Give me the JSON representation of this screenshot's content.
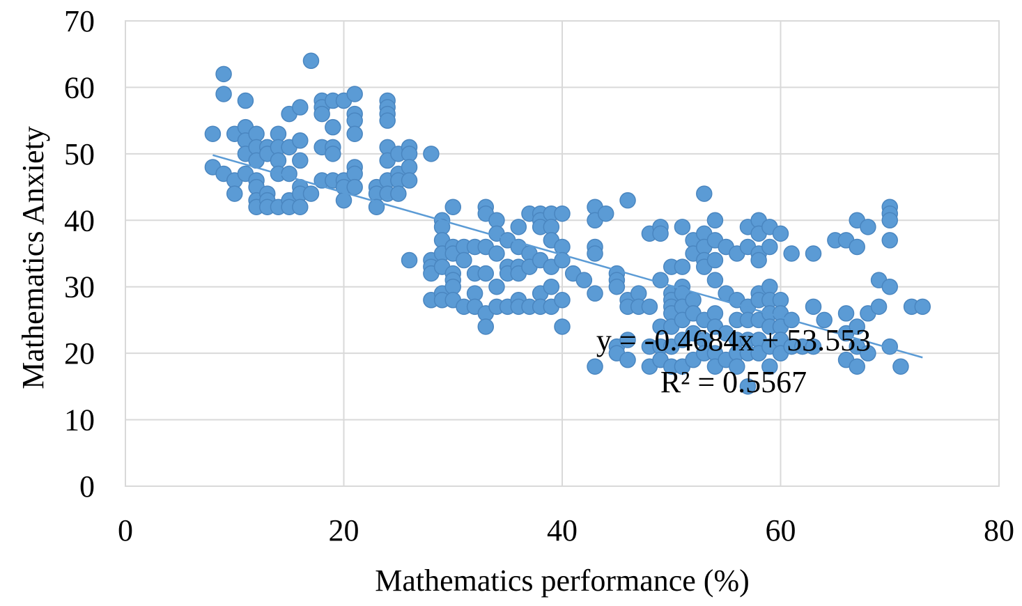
{
  "chart_data": {
    "type": "scatter",
    "title": "",
    "xlabel": "Mathematics performance (%)",
    "ylabel": "Mathematics Anxiety",
    "xlim": [
      0,
      80
    ],
    "ylim": [
      0,
      70
    ],
    "xticks": [
      0,
      20,
      40,
      60,
      80
    ],
    "yticks": [
      0,
      10,
      20,
      30,
      40,
      50,
      60,
      70
    ],
    "grid": true,
    "legend": "none",
    "colors": {
      "point": "#5b9bd5",
      "point_edge": "#4a86c0",
      "trendline": "#5b9bd5",
      "grid": "#d9d9d9"
    },
    "trendline": {
      "slope": -0.4684,
      "intercept": 53.553,
      "x_range": [
        8,
        73
      ],
      "equation_label": "y = -0.4684x + 53.553",
      "r2_label": "R² = 0.5567"
    },
    "points": [
      [
        8,
        53
      ],
      [
        8,
        48
      ],
      [
        9,
        62
      ],
      [
        9,
        59
      ],
      [
        9,
        47
      ],
      [
        10,
        53
      ],
      [
        10,
        46
      ],
      [
        10,
        44
      ],
      [
        11,
        58
      ],
      [
        11,
        54
      ],
      [
        11,
        52
      ],
      [
        11,
        50
      ],
      [
        11,
        47
      ],
      [
        12,
        53
      ],
      [
        12,
        51
      ],
      [
        12,
        49
      ],
      [
        12,
        46
      ],
      [
        12,
        45
      ],
      [
        12,
        43
      ],
      [
        12,
        42
      ],
      [
        13,
        51
      ],
      [
        13,
        50
      ],
      [
        13,
        44
      ],
      [
        13,
        43
      ],
      [
        13,
        42
      ],
      [
        14,
        53
      ],
      [
        14,
        51
      ],
      [
        14,
        49
      ],
      [
        14,
        47
      ],
      [
        14,
        42
      ],
      [
        15,
        56
      ],
      [
        15,
        51
      ],
      [
        15,
        47
      ],
      [
        15,
        43
      ],
      [
        15,
        42
      ],
      [
        16,
        57
      ],
      [
        16,
        52
      ],
      [
        16,
        49
      ],
      [
        16,
        45
      ],
      [
        16,
        44
      ],
      [
        16,
        42
      ],
      [
        17,
        64
      ],
      [
        17,
        44
      ],
      [
        18,
        58
      ],
      [
        18,
        57
      ],
      [
        18,
        56
      ],
      [
        18,
        51
      ],
      [
        18,
        46
      ],
      [
        19,
        58
      ],
      [
        19,
        54
      ],
      [
        19,
        51
      ],
      [
        19,
        50
      ],
      [
        19,
        46
      ],
      [
        20,
        58
      ],
      [
        20,
        46
      ],
      [
        20,
        45
      ],
      [
        20,
        43
      ],
      [
        21,
        59
      ],
      [
        21,
        56
      ],
      [
        21,
        55
      ],
      [
        21,
        53
      ],
      [
        21,
        48
      ],
      [
        21,
        47
      ],
      [
        21,
        45
      ],
      [
        23,
        45
      ],
      [
        23,
        44
      ],
      [
        23,
        42
      ],
      [
        24,
        58
      ],
      [
        24,
        57
      ],
      [
        24,
        56
      ],
      [
        24,
        55
      ],
      [
        24,
        51
      ],
      [
        24,
        49
      ],
      [
        24,
        46
      ],
      [
        24,
        44
      ],
      [
        25,
        50
      ],
      [
        25,
        47
      ],
      [
        25,
        46
      ],
      [
        25,
        44
      ],
      [
        26,
        51
      ],
      [
        26,
        50
      ],
      [
        26,
        48
      ],
      [
        26,
        46
      ],
      [
        26,
        34
      ],
      [
        28,
        50
      ],
      [
        28,
        34
      ],
      [
        28,
        33
      ],
      [
        28,
        32
      ],
      [
        28,
        28
      ],
      [
        29,
        40
      ],
      [
        29,
        39
      ],
      [
        29,
        37
      ],
      [
        29,
        35
      ],
      [
        29,
        33
      ],
      [
        29,
        29
      ],
      [
        29,
        28
      ],
      [
        30,
        42
      ],
      [
        30,
        36
      ],
      [
        30,
        35
      ],
      [
        30,
        32
      ],
      [
        30,
        31
      ],
      [
        30,
        30
      ],
      [
        30,
        28
      ],
      [
        31,
        36
      ],
      [
        31,
        34
      ],
      [
        31,
        27
      ],
      [
        32,
        36
      ],
      [
        32,
        32
      ],
      [
        32,
        29
      ],
      [
        32,
        27
      ],
      [
        33,
        42
      ],
      [
        33,
        41
      ],
      [
        33,
        36
      ],
      [
        33,
        32
      ],
      [
        33,
        26
      ],
      [
        33,
        24
      ],
      [
        34,
        40
      ],
      [
        34,
        38
      ],
      [
        34,
        35
      ],
      [
        34,
        30
      ],
      [
        34,
        27
      ],
      [
        35,
        37
      ],
      [
        35,
        33
      ],
      [
        35,
        32
      ],
      [
        35,
        27
      ],
      [
        36,
        39
      ],
      [
        36,
        36
      ],
      [
        36,
        33
      ],
      [
        36,
        32
      ],
      [
        36,
        28
      ],
      [
        36,
        27
      ],
      [
        37,
        41
      ],
      [
        37,
        35
      ],
      [
        37,
        33
      ],
      [
        37,
        27
      ],
      [
        38,
        41
      ],
      [
        38,
        40
      ],
      [
        38,
        39
      ],
      [
        38,
        34
      ],
      [
        38,
        29
      ],
      [
        38,
        27
      ],
      [
        39,
        41
      ],
      [
        39,
        39
      ],
      [
        39,
        37
      ],
      [
        39,
        33
      ],
      [
        39,
        30
      ],
      [
        39,
        27
      ],
      [
        40,
        41
      ],
      [
        40,
        36
      ],
      [
        40,
        34
      ],
      [
        40,
        28
      ],
      [
        40,
        24
      ],
      [
        41,
        32
      ],
      [
        42,
        31
      ],
      [
        43,
        42
      ],
      [
        43,
        40
      ],
      [
        43,
        36
      ],
      [
        43,
        35
      ],
      [
        43,
        29
      ],
      [
        43,
        18
      ],
      [
        44,
        41
      ],
      [
        45,
        32
      ],
      [
        45,
        31
      ],
      [
        45,
        30
      ],
      [
        45,
        21
      ],
      [
        45,
        20
      ],
      [
        46,
        43
      ],
      [
        46,
        28
      ],
      [
        46,
        27
      ],
      [
        46,
        22
      ],
      [
        46,
        19
      ],
      [
        47,
        29
      ],
      [
        47,
        27
      ],
      [
        48,
        38
      ],
      [
        48,
        27
      ],
      [
        48,
        21
      ],
      [
        48,
        18
      ],
      [
        49,
        39
      ],
      [
        49,
        38
      ],
      [
        49,
        31
      ],
      [
        49,
        24
      ],
      [
        49,
        21
      ],
      [
        49,
        19
      ],
      [
        50,
        33
      ],
      [
        50,
        29
      ],
      [
        50,
        28
      ],
      [
        50,
        27
      ],
      [
        50,
        26
      ],
      [
        50,
        24
      ],
      [
        50,
        21
      ],
      [
        50,
        18
      ],
      [
        51,
        39
      ],
      [
        51,
        33
      ],
      [
        51,
        30
      ],
      [
        51,
        29
      ],
      [
        51,
        27
      ],
      [
        51,
        25
      ],
      [
        51,
        22
      ],
      [
        51,
        18
      ],
      [
        52,
        37
      ],
      [
        52,
        35
      ],
      [
        52,
        28
      ],
      [
        52,
        26
      ],
      [
        52,
        23
      ],
      [
        52,
        19
      ],
      [
        53,
        44
      ],
      [
        53,
        38
      ],
      [
        53,
        36
      ],
      [
        53,
        34
      ],
      [
        53,
        33
      ],
      [
        53,
        25
      ],
      [
        53,
        22
      ],
      [
        53,
        20
      ],
      [
        54,
        40
      ],
      [
        54,
        37
      ],
      [
        54,
        34
      ],
      [
        54,
        31
      ],
      [
        54,
        26
      ],
      [
        54,
        24
      ],
      [
        54,
        20
      ],
      [
        54,
        18
      ],
      [
        55,
        36
      ],
      [
        55,
        29
      ],
      [
        55,
        23
      ],
      [
        55,
        19
      ],
      [
        56,
        35
      ],
      [
        56,
        28
      ],
      [
        56,
        25
      ],
      [
        56,
        22
      ],
      [
        56,
        20
      ],
      [
        56,
        18
      ],
      [
        57,
        39
      ],
      [
        57,
        36
      ],
      [
        57,
        27
      ],
      [
        57,
        25
      ],
      [
        57,
        22
      ],
      [
        57,
        20
      ],
      [
        57,
        15
      ],
      [
        58,
        40
      ],
      [
        58,
        38
      ],
      [
        58,
        35
      ],
      [
        58,
        34
      ],
      [
        58,
        29
      ],
      [
        58,
        28
      ],
      [
        58,
        25
      ],
      [
        58,
        22
      ],
      [
        58,
        20
      ],
      [
        59,
        39
      ],
      [
        59,
        36
      ],
      [
        59,
        30
      ],
      [
        59,
        28
      ],
      [
        59,
        26
      ],
      [
        59,
        24
      ],
      [
        59,
        21
      ],
      [
        59,
        18
      ],
      [
        60,
        38
      ],
      [
        60,
        28
      ],
      [
        60,
        26
      ],
      [
        60,
        24
      ],
      [
        60,
        22
      ],
      [
        60,
        20
      ],
      [
        61,
        35
      ],
      [
        61,
        25
      ],
      [
        61,
        21
      ],
      [
        62,
        21
      ],
      [
        63,
        35
      ],
      [
        63,
        27
      ],
      [
        63,
        21
      ],
      [
        64,
        25
      ],
      [
        65,
        37
      ],
      [
        66,
        37
      ],
      [
        66,
        26
      ],
      [
        66,
        23
      ],
      [
        66,
        19
      ],
      [
        67,
        40
      ],
      [
        67,
        36
      ],
      [
        67,
        24
      ],
      [
        67,
        21
      ],
      [
        67,
        18
      ],
      [
        68,
        39
      ],
      [
        68,
        26
      ],
      [
        68,
        20
      ],
      [
        69,
        31
      ],
      [
        69,
        27
      ],
      [
        70,
        42
      ],
      [
        70,
        41
      ],
      [
        70,
        40
      ],
      [
        70,
        37
      ],
      [
        70,
        30
      ],
      [
        70,
        21
      ],
      [
        71,
        18
      ],
      [
        72,
        27
      ],
      [
        73,
        27
      ]
    ]
  }
}
